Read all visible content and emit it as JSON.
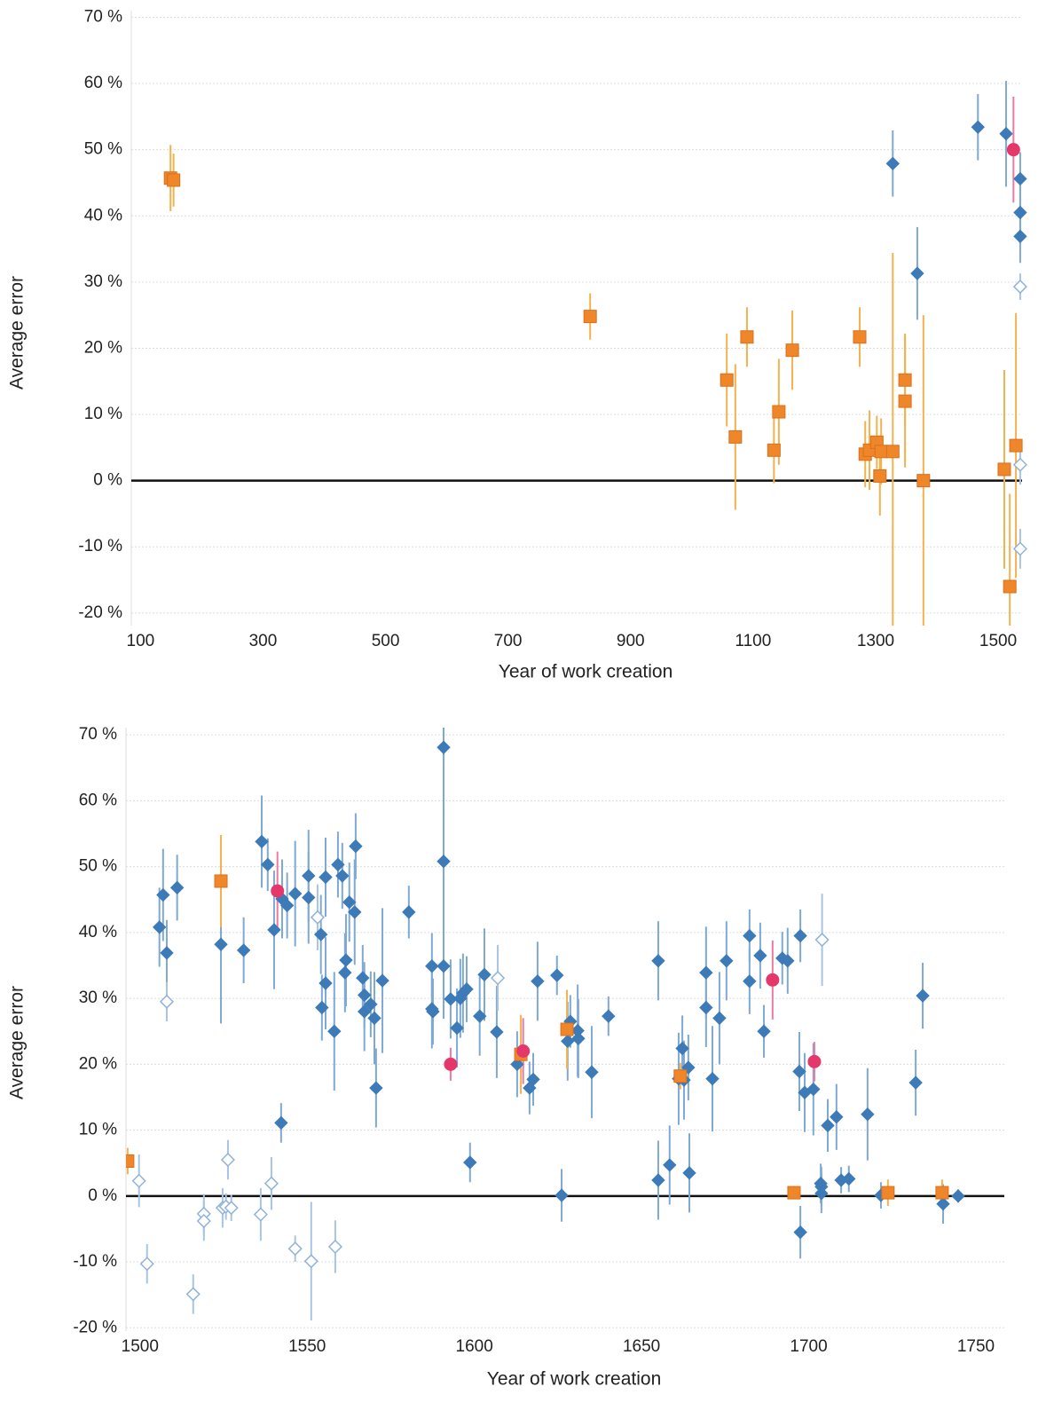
{
  "chart_data": [
    {
      "type": "scatter",
      "x_label": "Year of work creation",
      "y_label": "Average error",
      "xlim": [
        85,
        1539
      ],
      "ylim": [
        -21.9,
        71
      ],
      "xticks": [
        100,
        300,
        500,
        700,
        900,
        1100,
        1300,
        1500
      ],
      "yticks": [
        {
          "value": -20,
          "label": "-20 %"
        },
        {
          "value": -10,
          "label": "-10 %"
        },
        {
          "value": 0,
          "label": "0 %"
        },
        {
          "value": 10,
          "label": "10 %"
        },
        {
          "value": 20,
          "label": "20 %"
        },
        {
          "value": 30,
          "label": "30 %"
        },
        {
          "value": 40,
          "label": "40 %"
        },
        {
          "value": 50,
          "label": "50 %"
        },
        {
          "value": 60,
          "label": "60 %"
        },
        {
          "value": 70,
          "label": "70 %"
        }
      ],
      "grid": true,
      "series": [
        {
          "marker": "square",
          "filled": true,
          "color": "#f0862a",
          "error_color": "#f3b24f",
          "x": [
            149,
            154,
            834,
            1057,
            1071,
            1090,
            1134,
            1142,
            1164,
            1274,
            1283,
            1290,
            1302,
            1307,
            1309,
            1328,
            1348,
            1348,
            1378,
            1510,
            1519,
            1529
          ],
          "values": [
            45.7,
            45.4,
            24.8,
            15.2,
            6.6,
            21.7,
            4.6,
            10.4,
            19.7,
            21.7,
            4.0,
            4.6,
            5.8,
            0.7,
            4.4,
            4.4,
            15.2,
            12.0,
            0.0,
            1.7,
            -16.0,
            5.3
          ],
          "errors": [
            5,
            4,
            3.5,
            7,
            11,
            4.5,
            5,
            8,
            6,
            4.5,
            5,
            6,
            4,
            6,
            5,
            30,
            7,
            10,
            25,
            15,
            14,
            20
          ]
        },
        {
          "marker": "diamond",
          "filled": true,
          "color": "#3d7ab8",
          "error_color": "#7ea9d4",
          "x": [
            1328,
            1368,
            1467,
            1513,
            1536,
            1536,
            1536
          ],
          "values": [
            47.9,
            31.3,
            53.4,
            52.4,
            45.6,
            40.5,
            36.9
          ],
          "errors": [
            5,
            7,
            5,
            8,
            4,
            4,
            4
          ]
        },
        {
          "marker": "diamond",
          "filled": false,
          "color": "#8fb3da",
          "error_color": "#a9c4e3",
          "x": [
            1536,
            1536,
            1536
          ],
          "values": [
            29.3,
            2.4,
            -10.3
          ],
          "errors": [
            2,
            3,
            3
          ]
        },
        {
          "marker": "circle",
          "filled": true,
          "color": "#e5386a",
          "error_color": "#ef7aa0",
          "x": [
            1525
          ],
          "values": [
            50
          ],
          "errors": [
            8
          ]
        }
      ]
    },
    {
      "type": "scatter",
      "x_label": "Year of work creation",
      "y_label": "Average error",
      "xlim": [
        1495.8,
        1758.5
      ],
      "ylim": [
        -20.5,
        71.1
      ],
      "xticks": [
        1500,
        1550,
        1600,
        1650,
        1700,
        1750
      ],
      "yticks": [
        {
          "value": -20,
          "label": "-20 %"
        },
        {
          "value": -10,
          "label": "-10 %"
        },
        {
          "value": 0,
          "label": "0 %"
        },
        {
          "value": 10,
          "label": "10 %"
        },
        {
          "value": 20,
          "label": "20 %"
        },
        {
          "value": 30,
          "label": "30 %"
        },
        {
          "value": 40,
          "label": "40 %"
        },
        {
          "value": 50,
          "label": "50 %"
        },
        {
          "value": 60,
          "label": "60 %"
        },
        {
          "value": 70,
          "label": "70 %"
        }
      ],
      "grid": true,
      "series": [
        {
          "marker": "diamond",
          "filled": true,
          "color": "#3d7ab8",
          "error_color": "#7ea9d4",
          "x": [
            1505.8,
            1506.9,
            1508,
            1511.1,
            1524.2,
            1531,
            1536.4,
            1538.2,
            1540.1,
            1542.5,
            1542.2,
            1544,
            1546.4,
            1550.4,
            1550.4,
            1554.1,
            1554.4,
            1555.5,
            1555.5,
            1558.1,
            1559.2,
            1560.5,
            1561.3,
            1561.6,
            1562.6,
            1564.2,
            1564.5,
            1566.6,
            1567.1,
            1567.1,
            1569,
            1570.1,
            1570.6,
            1572.5,
            1580.4,
            1587.3,
            1587.3,
            1587.6,
            1590.8,
            1590.8,
            1590.8,
            1592.9,
            1594.8,
            1595.8,
            1596.6,
            1597.7,
            1598.7,
            1601.6,
            1603,
            1606.7,
            1612.8,
            1616.5,
            1617.6,
            1618.9,
            1624.7,
            1626.1,
            1627.9,
            1628.7,
            1630.9,
            1631.1,
            1635.1,
            1640.1,
            1655,
            1655,
            1658.4,
            1661.1,
            1662.2,
            1662.7,
            1664,
            1664.3,
            1669.3,
            1669.3,
            1671.2,
            1673.3,
            1675.4,
            1682.3,
            1682.3,
            1685.5,
            1686.6,
            1692.1,
            1693.7,
            1697.2,
            1697.5,
            1697.5,
            1698.8,
            1701.4,
            1703.6,
            1703.8,
            1703.8,
            1705.7,
            1708.3,
            1709.7,
            1712,
            1717.6,
            1721.6,
            1732,
            1734.1,
            1740.2,
            1744.7
          ],
          "values": [
            40.8,
            45.7,
            36.9,
            46.8,
            38.2,
            37.3,
            53.8,
            50.3,
            40.4,
            45.1,
            11.1,
            44.1,
            45.9,
            45.3,
            48.6,
            39.7,
            28.6,
            32.3,
            48.4,
            25,
            50.3,
            48.6,
            33.9,
            35.8,
            44.6,
            43.1,
            53.1,
            33.1,
            30.5,
            28,
            29.1,
            27,
            16.4,
            32.7,
            43.1,
            34.9,
            28.4,
            28,
            34.9,
            50.8,
            68.1,
            29.9,
            25.5,
            30,
            30.8,
            31.4,
            5.1,
            27.3,
            33.6,
            24.9,
            20,
            16.4,
            17.7,
            32.6,
            33.5,
            0.1,
            23.5,
            26.5,
            25.1,
            23.9,
            18.8,
            27.3,
            35.7,
            2.4,
            4.7,
            17.8,
            22.4,
            17.6,
            19.5,
            3.5,
            33.9,
            28.6,
            17.8,
            27,
            35.7,
            39.5,
            32.6,
            36.5,
            25,
            36.1,
            35.7,
            18.9,
            39.5,
            -5.5,
            15.7,
            16.2,
            1.9,
            1.4,
            0.4,
            10.7,
            12,
            2.4,
            2.6,
            12.4,
            0.1,
            17.2,
            30.4,
            -1.2,
            0
          ],
          "errors": [
            6,
            7,
            5,
            5,
            12,
            5,
            7,
            4,
            9,
            6,
            3,
            5,
            8,
            7,
            7,
            6,
            5,
            7,
            6,
            9,
            5,
            5,
            6,
            7,
            6,
            8,
            5,
            5,
            5,
            6,
            5,
            7,
            6,
            11,
            4,
            5,
            6,
            5,
            8,
            8,
            10,
            6,
            6,
            6,
            6,
            5,
            3,
            6,
            7,
            7,
            5,
            4,
            4,
            6,
            3,
            4,
            6,
            4,
            7,
            6,
            7,
            3,
            6,
            6,
            6,
            7,
            5,
            6,
            5,
            6,
            7,
            6,
            8,
            7,
            6,
            4,
            5,
            5,
            4,
            4,
            5,
            6,
            4,
            4,
            6,
            7,
            3,
            3,
            3,
            4,
            5,
            2,
            2,
            7,
            2,
            5,
            5,
            3,
            1
          ]
        },
        {
          "marker": "diamond",
          "filled": false,
          "color": "#8fb3da",
          "error_color": "#a9c4e3",
          "x": [
            1499.7,
            1502.1,
            1508,
            1515.9,
            1519.1,
            1519.1,
            1524.7,
            1526.3,
            1525.7,
            1527.3,
            1536.1,
            1539.3,
            1546.4,
            1551.2,
            1553.1,
            1558.4,
            1607,
            1704
          ],
          "values": [
            2.3,
            -10.3,
            29.5,
            -14.9,
            -2.7,
            -3.8,
            -1.8,
            5.5,
            -1.6,
            -1.8,
            -2.8,
            1.9,
            -8,
            -9.9,
            42.3,
            -7.7,
            33.1,
            38.9
          ],
          "errors": [
            4,
            3,
            3,
            3,
            3,
            3,
            3,
            3,
            2,
            2,
            4,
            4,
            2,
            9,
            5,
            4,
            5,
            7
          ]
        },
        {
          "marker": "square",
          "filled": true,
          "color": "#f0862a",
          "error_color": "#f3b24f",
          "x": [
            1496.3,
            1524.2,
            1613.9,
            1627.7,
            1661.6,
            1695.6,
            1723.7,
            1739.9
          ],
          "values": [
            5.3,
            47.8,
            21.5,
            25.3,
            18.2,
            0.5,
            0.5,
            0.5
          ],
          "errors": [
            2,
            7,
            6,
            6,
            2,
            1,
            2,
            2
          ]
        },
        {
          "marker": "circle",
          "filled": true,
          "color": "#e5386a",
          "error_color": "#ef7aa0",
          "x": [
            1541.1,
            1592.9,
            1614.6,
            1689.2,
            1701.7
          ],
          "values": [
            46.3,
            20,
            22,
            32.8,
            20.4
          ],
          "errors": [
            6,
            2.5,
            5,
            6,
            3
          ]
        }
      ]
    }
  ]
}
